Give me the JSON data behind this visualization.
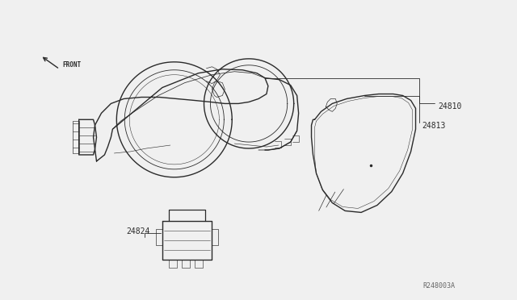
{
  "bg_color": "#f0f0f0",
  "line_color": "#2a2a2a",
  "text_color": "#2a2a2a",
  "ref_code": "R248003A",
  "part_24810": "24810",
  "part_24813": "24813",
  "part_24824": "24824"
}
